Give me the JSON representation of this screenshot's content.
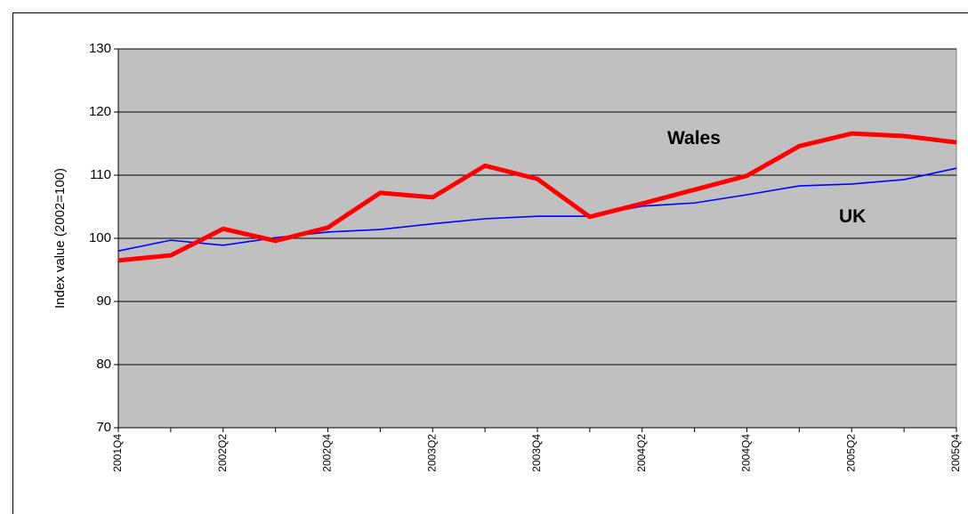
{
  "chart_data": {
    "type": "line",
    "y_axis_label": "Index value (2002=100)",
    "categories": [
      "2001Q4",
      null,
      "2002Q2",
      null,
      "2002Q4",
      null,
      "2003Q2",
      null,
      "2003Q4",
      null,
      "2004Q2",
      null,
      "2004Q4",
      null,
      "2005Q2",
      null,
      "2005Q4"
    ],
    "series": [
      {
        "name": "Wales",
        "color": "#ff0000",
        "values": [
          96.5,
          97.3,
          101.5,
          99.6,
          101.7,
          107.2,
          106.5,
          111.5,
          109.4,
          103.4,
          105.5,
          107.7,
          109.9,
          114.6,
          116.6,
          116.2,
          115.2
        ]
      },
      {
        "name": "UK",
        "color": "#0000ff",
        "values": [
          98.0,
          99.7,
          98.9,
          100.1,
          101.0,
          101.4,
          102.3,
          103.1,
          103.5,
          103.5,
          105.1,
          105.6,
          106.9,
          108.3,
          108.6,
          109.3,
          111.1
        ]
      }
    ],
    "ylim": [
      70,
      130
    ],
    "yticks": [
      70,
      80,
      90,
      100,
      110,
      120,
      130
    ],
    "grid": true,
    "plot_background": "#c0c0c0"
  }
}
